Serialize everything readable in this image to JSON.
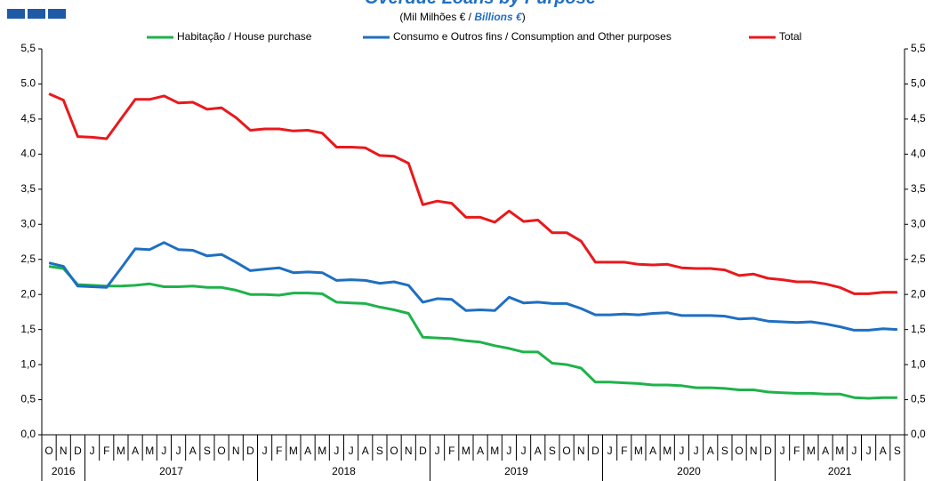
{
  "chart_data": {
    "type": "line",
    "title": "Overdue Loans by Purpose",
    "subtitle": "(Mil Milhões  € / ",
    "subtitle_unit": "Billions €",
    "subtitle_end": ")",
    "categories": [
      "O",
      "N",
      "D",
      "J",
      "F",
      "M",
      "A",
      "M",
      "J",
      "J",
      "A",
      "S",
      "O",
      "N",
      "D",
      "J",
      "F",
      "M",
      "A",
      "M",
      "J",
      "J",
      "A",
      "S",
      "O",
      "N",
      "D",
      "J",
      "F",
      "M",
      "A",
      "M",
      "J",
      "J",
      "A",
      "S",
      "O",
      "N",
      "D",
      "J",
      "F",
      "M",
      "A",
      "M",
      "J",
      "J",
      "A",
      "S",
      "O",
      "N",
      "D",
      "J",
      "F",
      "M",
      "A",
      "M",
      "J",
      "J",
      "A",
      "S"
    ],
    "year_groups": [
      {
        "label": "2016",
        "count": 3
      },
      {
        "label": "2017",
        "count": 12
      },
      {
        "label": "2018",
        "count": 12
      },
      {
        "label": "2019",
        "count": 12
      },
      {
        "label": "2020",
        "count": 12
      },
      {
        "label": "2021",
        "count": 9
      }
    ],
    "series": [
      {
        "name": "Habitação / House purchase",
        "color": "#1fb24a",
        "values": [
          2.4,
          2.37,
          2.14,
          2.13,
          2.12,
          2.12,
          2.13,
          2.15,
          2.11,
          2.11,
          2.12,
          2.1,
          2.1,
          2.06,
          2.0,
          2.0,
          1.99,
          2.02,
          2.02,
          2.01,
          1.89,
          1.88,
          1.87,
          1.82,
          1.78,
          1.73,
          1.39,
          1.38,
          1.37,
          1.34,
          1.32,
          1.27,
          1.23,
          1.18,
          1.18,
          1.02,
          1.0,
          0.95,
          0.75,
          0.75,
          0.74,
          0.73,
          0.71,
          0.71,
          0.7,
          0.67,
          0.67,
          0.66,
          0.64,
          0.64,
          0.61,
          0.6,
          0.59,
          0.59,
          0.58,
          0.58,
          0.53,
          0.52,
          0.53,
          0.53
        ]
      },
      {
        "name": "Consumo e Outros fins / Consumption and Other purposes",
        "color": "#1f6fc1",
        "values": [
          2.45,
          2.4,
          2.12,
          2.11,
          2.1,
          2.37,
          2.65,
          2.64,
          2.74,
          2.64,
          2.63,
          2.55,
          2.57,
          2.46,
          2.34,
          2.36,
          2.38,
          2.31,
          2.32,
          2.31,
          2.2,
          2.21,
          2.2,
          2.16,
          2.18,
          2.13,
          1.89,
          1.94,
          1.93,
          1.77,
          1.78,
          1.77,
          1.96,
          1.88,
          1.89,
          1.87,
          1.87,
          1.8,
          1.71,
          1.71,
          1.72,
          1.71,
          1.73,
          1.74,
          1.7,
          1.7,
          1.7,
          1.69,
          1.65,
          1.66,
          1.62,
          1.61,
          1.6,
          1.61,
          1.58,
          1.54,
          1.49,
          1.49,
          1.51,
          1.5
        ]
      },
      {
        "name": "Total",
        "color": "#e8191c",
        "values": [
          4.86,
          4.77,
          4.25,
          4.24,
          4.22,
          4.5,
          4.78,
          4.78,
          4.83,
          4.73,
          4.74,
          4.64,
          4.66,
          4.52,
          4.34,
          4.36,
          4.36,
          4.33,
          4.34,
          4.3,
          4.1,
          4.1,
          4.09,
          3.98,
          3.97,
          3.87,
          3.28,
          3.33,
          3.3,
          3.1,
          3.1,
          3.03,
          3.19,
          3.04,
          3.06,
          2.88,
          2.88,
          2.76,
          2.46,
          2.46,
          2.46,
          2.43,
          2.42,
          2.43,
          2.38,
          2.37,
          2.37,
          2.35,
          2.27,
          2.29,
          2.23,
          2.21,
          2.18,
          2.18,
          2.15,
          2.1,
          2.01,
          2.01,
          2.03,
          2.03
        ]
      }
    ],
    "ylim": [
      0,
      5.5
    ],
    "yticks": [
      {
        "value": 0,
        "label": "0,0"
      },
      {
        "value": 0.5,
        "label": "0,5"
      },
      {
        "value": 1,
        "label": "1,0"
      },
      {
        "value": 1.5,
        "label": "1,5"
      },
      {
        "value": 2,
        "label": "2,0"
      },
      {
        "value": 2.5,
        "label": "2,5"
      },
      {
        "value": 3,
        "label": "3,0"
      },
      {
        "value": 3.5,
        "label": "3,5"
      },
      {
        "value": 4,
        "label": "4.0"
      },
      {
        "value": 4.5,
        "label": "4,5"
      },
      {
        "value": 5,
        "label": "5.0"
      },
      {
        "value": 5.5,
        "label": "5,5"
      }
    ],
    "y2lim": [
      0,
      5.5
    ],
    "y2ticks": [
      {
        "value": 0,
        "label": "0,0"
      },
      {
        "value": 0.5,
        "label": "0,5"
      },
      {
        "value": 1,
        "label": "1,0"
      },
      {
        "value": 1.5,
        "label": "1,5"
      },
      {
        "value": 2,
        "label": "2,0"
      },
      {
        "value": 2.5,
        "label": "2,5"
      },
      {
        "value": 3,
        "label": "3,0"
      },
      {
        "value": 3.5,
        "label": "3,5"
      },
      {
        "value": 4,
        "label": "4,0"
      },
      {
        "value": 4.5,
        "label": "4,5"
      },
      {
        "value": 5,
        "label": "5,0"
      },
      {
        "value": 5.5,
        "label": "5,5"
      }
    ],
    "grid": false,
    "legend": "top"
  }
}
